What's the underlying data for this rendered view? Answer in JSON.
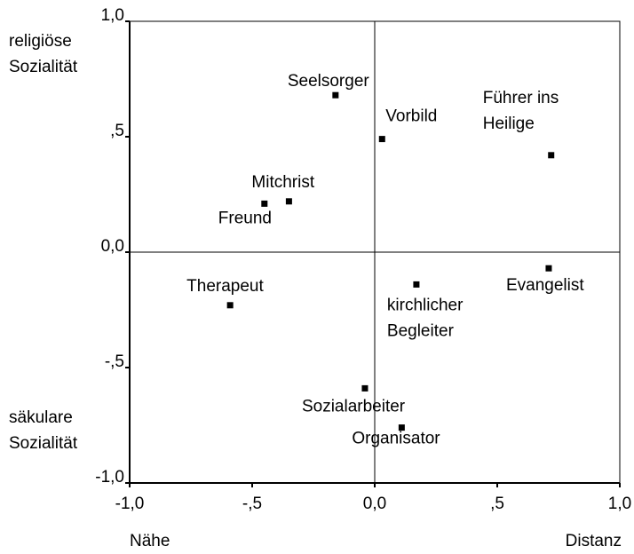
{
  "chart_data": {
    "type": "scatter",
    "labels": [
      [
        "Seelsorger"
      ],
      [
        "Vorbild"
      ],
      [
        "Führer ins",
        "Heilige"
      ],
      [
        "Mitchrist"
      ],
      [
        "Freund"
      ],
      [
        "Therapeut"
      ],
      [
        "Evangelist"
      ],
      [
        "kirchlicher",
        "Begleiter"
      ],
      [
        "Sozialarbeiter"
      ],
      [
        "Organisator"
      ]
    ],
    "x": [
      -0.16,
      0.03,
      0.72,
      -0.35,
      -0.45,
      -0.59,
      0.71,
      0.17,
      -0.04,
      0.11
    ],
    "values": [
      0.68,
      0.49,
      0.42,
      0.22,
      0.21,
      -0.23,
      -0.07,
      -0.14,
      -0.59,
      -0.76
    ],
    "color": "#000000",
    "xlim": [
      -1,
      1
    ],
    "ylim": [
      -1,
      1
    ],
    "xticks": [
      {
        "value": -1,
        "label": "-1,0"
      },
      {
        "value": -0.5,
        "label": "-,5"
      },
      {
        "value": 0,
        "label": "0,0"
      },
      {
        "value": 0.5,
        "label": ",5"
      },
      {
        "value": 1,
        "label": "1,0"
      }
    ],
    "yticks": [
      {
        "value": -1,
        "label": "-1,0"
      },
      {
        "value": -0.5,
        "label": "-,5"
      },
      {
        "value": 0,
        "label": "0,0"
      },
      {
        "value": 0.5,
        "label": ",5"
      },
      {
        "value": 1,
        "label": "1,0"
      }
    ],
    "annotations": {
      "top_left": [
        "religiöse",
        "Sozialität"
      ],
      "bottom_left": [
        "säkulare",
        "Sozialität"
      ],
      "x_left": "Nähe",
      "x_right": "Distanz"
    }
  }
}
